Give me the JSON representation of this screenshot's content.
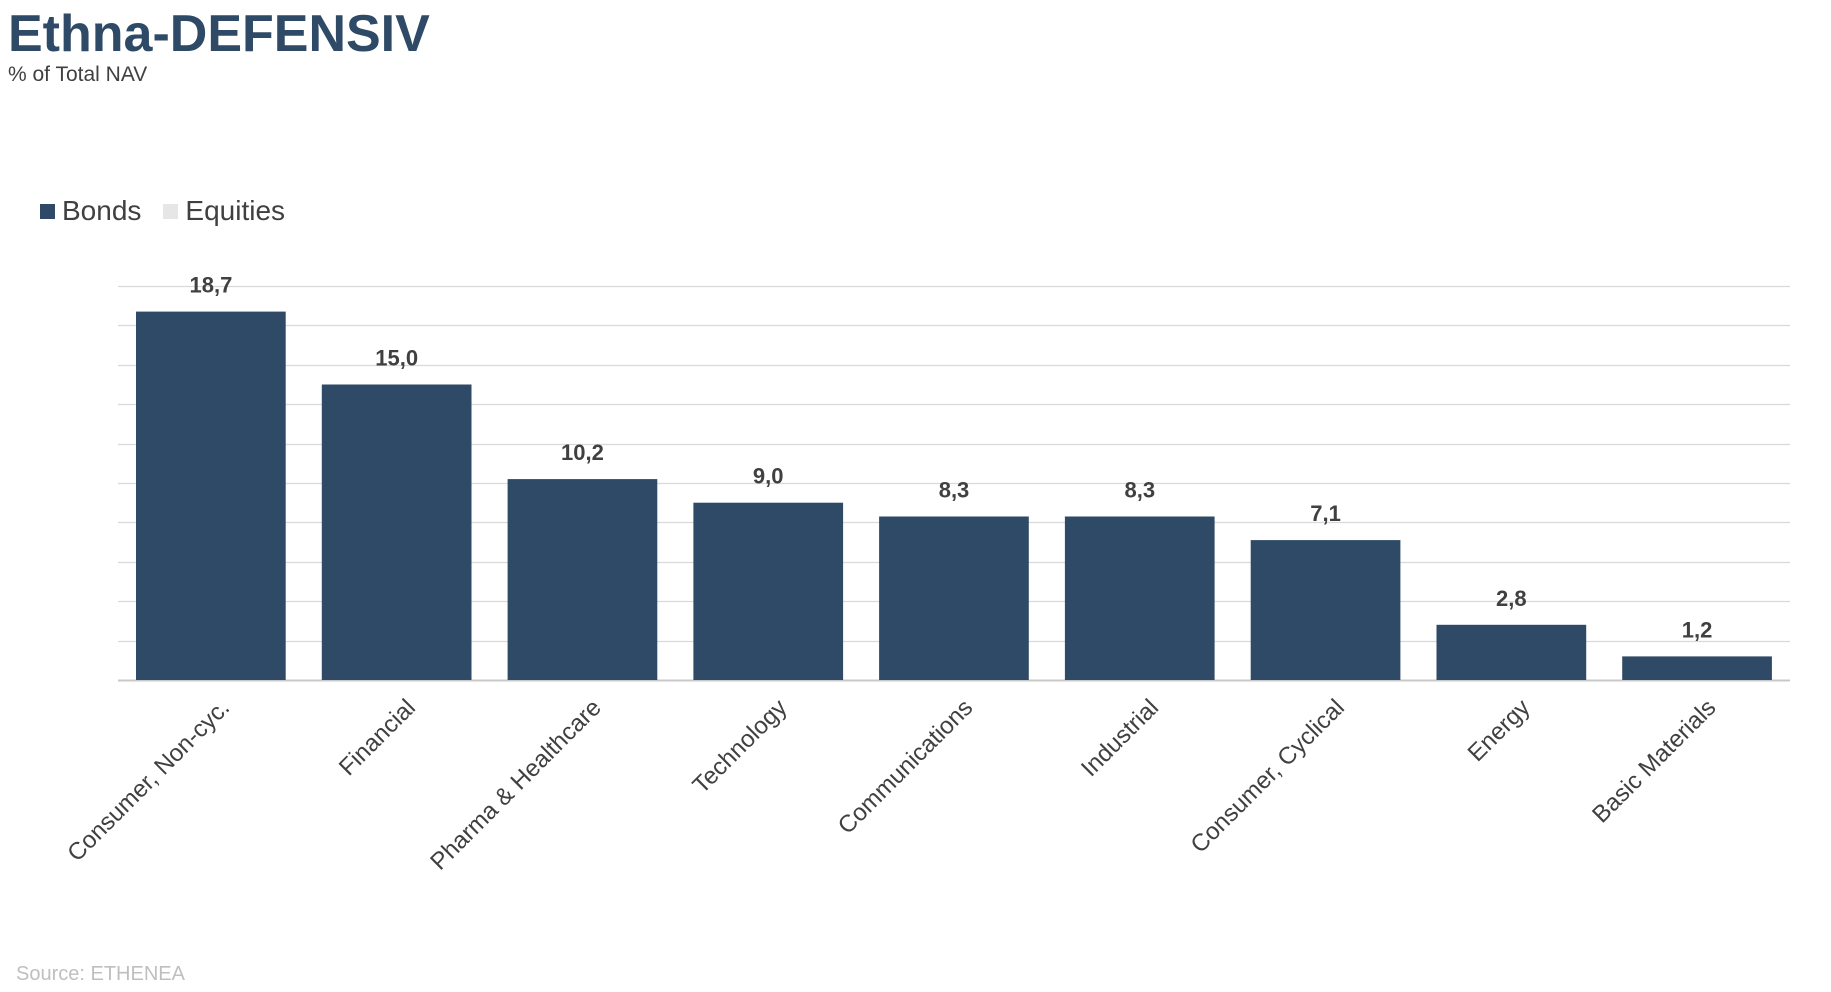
{
  "header": {
    "title": "Ethna-DEFENSIV",
    "subtitle": "% of Total NAV"
  },
  "legend": {
    "items": [
      {
        "label": "Bonds",
        "color": "#2e4a66"
      },
      {
        "label": "Equities",
        "color": "#e6e6e6"
      }
    ]
  },
  "footer": {
    "source": "Source: ETHENEA"
  },
  "chart_data": {
    "type": "bar",
    "title": "Ethna-DEFENSIV",
    "subtitle": "% of Total NAV",
    "categories": [
      "Consumer, Non-cyc.",
      "Financial",
      "Pharma & Healthcare",
      "Technology",
      "Communications",
      "Industrial",
      "Consumer, Cyclical",
      "Energy",
      "Basic Materials"
    ],
    "series": [
      {
        "name": "Bonds",
        "color": "#2e4a66",
        "values": [
          18.7,
          15.0,
          10.2,
          9.0,
          8.3,
          8.3,
          7.1,
          2.8,
          1.2
        ]
      },
      {
        "name": "Equities",
        "color": "#e6e6e6",
        "values": [
          0,
          0,
          0,
          0,
          0,
          0,
          0,
          0,
          0
        ]
      }
    ],
    "data_labels": [
      "18,7",
      "15,0",
      "10,2",
      "9,0",
      "8,3",
      "8,3",
      "7,1",
      "2,8",
      "1,2"
    ],
    "ylim": [
      0,
      20
    ],
    "grid": true,
    "legend_position": "top-left",
    "xlabel": "",
    "ylabel": ""
  }
}
